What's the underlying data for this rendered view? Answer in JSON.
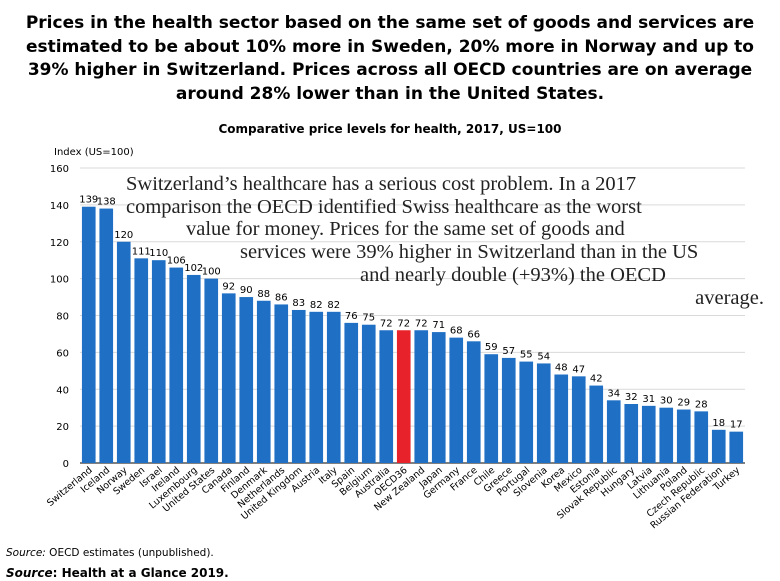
{
  "headline": {
    "lines": [
      "Prices in the health sector based on the same set of goods and services are",
      "estimated to be about 10% more in Sweden, 20% more in Norway and up to",
      "39% higher in Switzerland. Prices across all OECD countries are on average",
      "around 28% lower than in the United States."
    ]
  },
  "annotation": {
    "lines": [
      "Switzerland’s healthcare has a serious cost problem. In a 2017",
      "comparison the OECD identified Swiss healthcare as the worst",
      "value for money. Prices for the same set of goods and",
      "services were 39% higher in Switzerland than in the US",
      "and nearly double (+93%) the OECD",
      "average."
    ]
  },
  "source": {
    "line1_label": "Source:",
    "line1_text": " OECD estimates (unpublished).",
    "line2_label": "Source",
    "line2_text": ": Health at a Glance 2019."
  },
  "colors": {
    "bar": "#1f6fc5",
    "highlight": "#e8222a",
    "grid": "#d9d9d9"
  },
  "chart_data": {
    "type": "bar",
    "title": "Comparative price levels for health, 2017, US=100",
    "ylabel": "Index (US=100)",
    "ylim": [
      0,
      160
    ],
    "yticks": [
      0,
      20,
      40,
      60,
      80,
      100,
      120,
      140,
      160
    ],
    "grid": true,
    "highlight_category": "OECD36",
    "categories": [
      "Switzerland",
      "Iceland",
      "Norway",
      "Sweden",
      "Israel",
      "Ireland",
      "Luxembourg",
      "United States",
      "Canada",
      "Finland",
      "Denmark",
      "Netherlands",
      "United Kingdom",
      "Austria",
      "Italy",
      "Spain",
      "Belgium",
      "Australia",
      "OECD36",
      "New Zealand",
      "Japan",
      "Germany",
      "France",
      "Chile",
      "Greece",
      "Portugal",
      "Slovenia",
      "Korea",
      "Mexico",
      "Estonia",
      "Slovak Republic",
      "Hungary",
      "Latvia",
      "Lithuania",
      "Poland",
      "Czech Republic",
      "Russian Federation",
      "Turkey"
    ],
    "values": [
      139,
      138,
      120,
      111,
      110,
      106,
      102,
      100,
      92,
      90,
      88,
      86,
      83,
      82,
      82,
      76,
      75,
      72,
      72,
      72,
      71,
      68,
      66,
      59,
      57,
      55,
      54,
      48,
      47,
      42,
      34,
      32,
      31,
      30,
      29,
      28,
      18,
      17
    ]
  }
}
